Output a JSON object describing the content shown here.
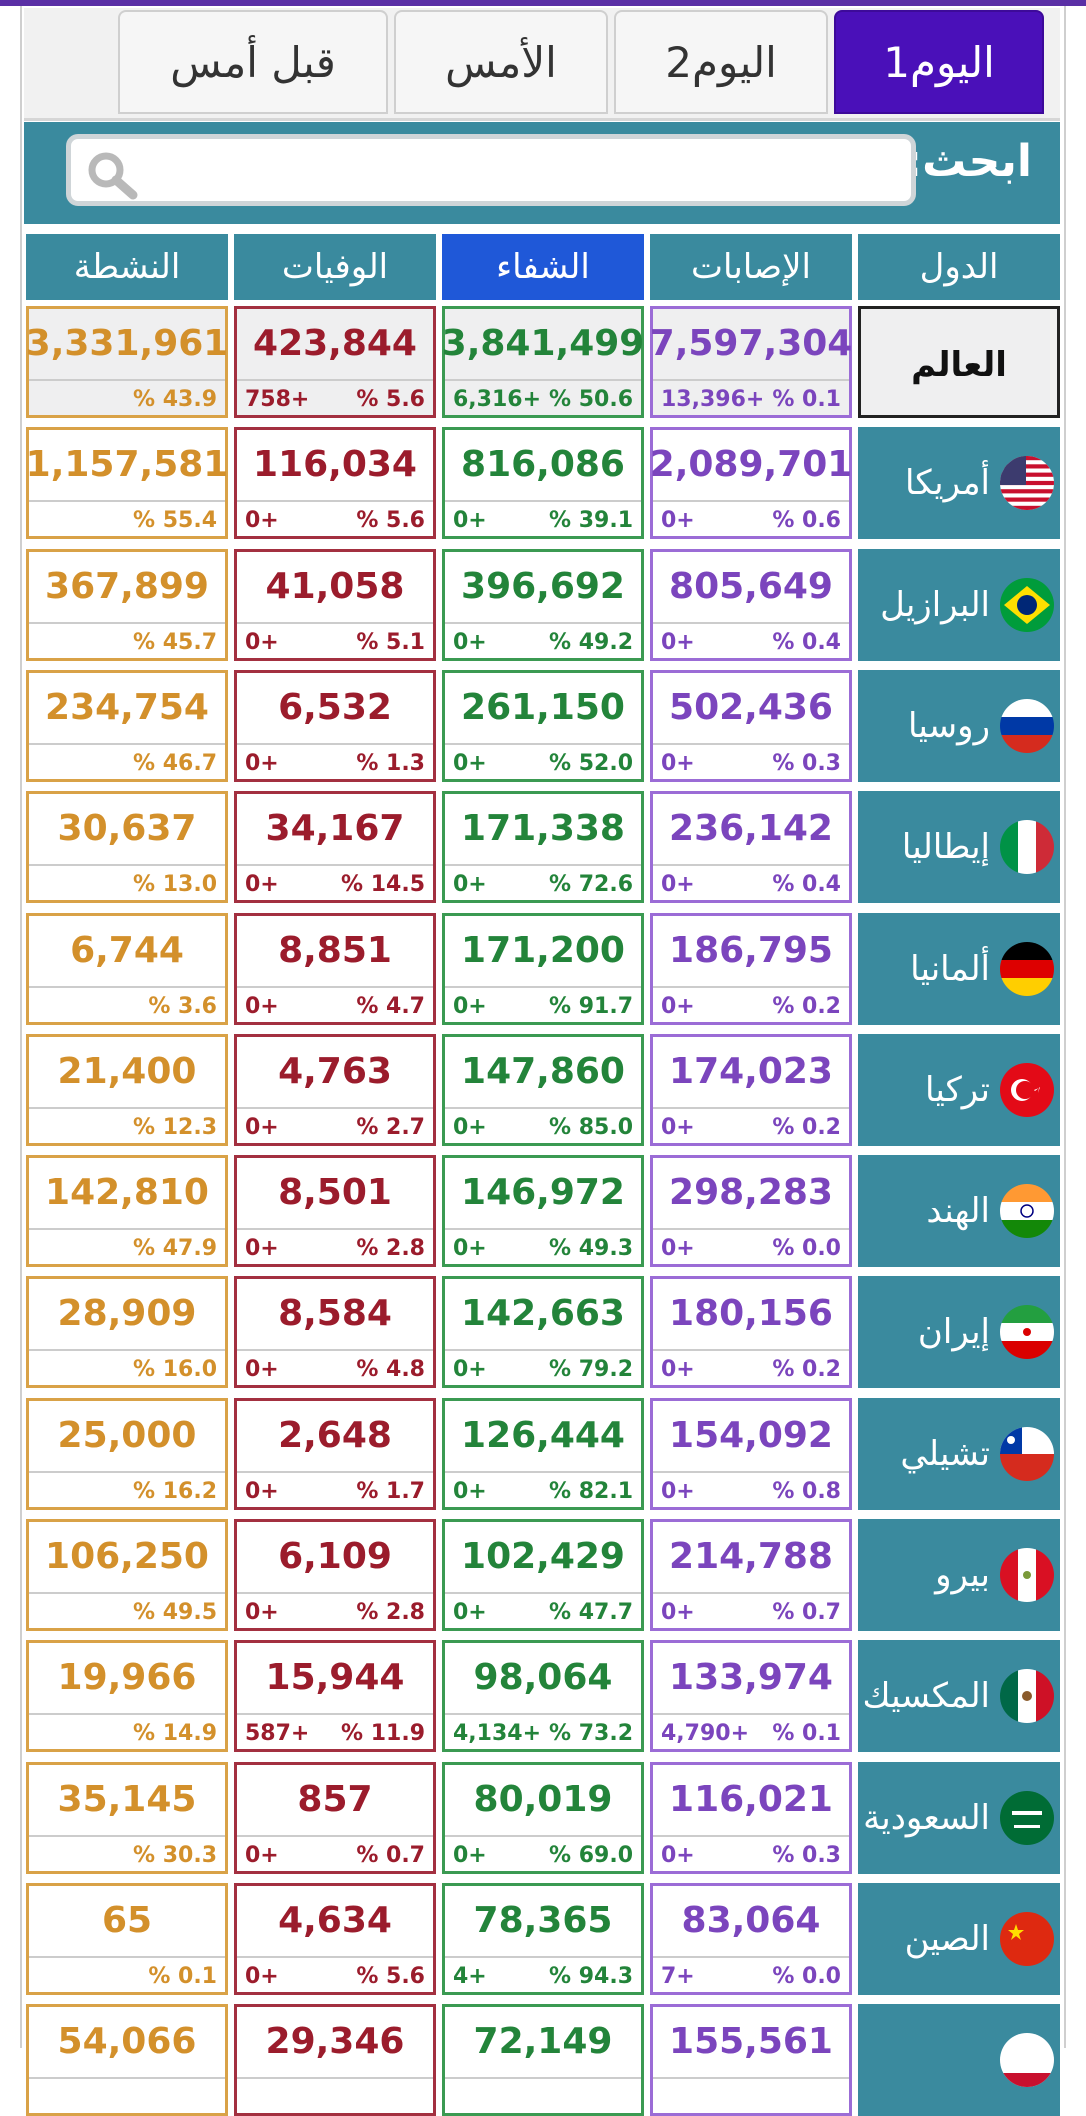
{
  "tabs": [
    {
      "label": "اليوم1",
      "active": true
    },
    {
      "label": "اليوم2",
      "active": false
    },
    {
      "label": "الأمس",
      "active": false
    },
    {
      "label": "قبل أمس",
      "active": false
    }
  ],
  "search": {
    "label": "ابحث:",
    "value": "",
    "placeholder": ""
  },
  "table": {
    "headers": {
      "country": "الدول",
      "cases": "الإصابات",
      "recovered": "الشفاء",
      "deaths": "الوفيات",
      "active": "النشطة"
    },
    "selected_header": "recovered",
    "rows": [
      {
        "country": "العالم",
        "flag": "world",
        "cases": "7,597,304",
        "cases_pct": "% 0.1",
        "cases_inc": "13,396+",
        "recovered": "3,841,499",
        "recovered_pct": "% 50.6",
        "recovered_inc": "6,316+",
        "deaths": "423,844",
        "deaths_pct": "% 5.6",
        "deaths_inc": "758+",
        "active": "3,331,961",
        "active_pct": "% 43.9"
      },
      {
        "country": "أمريكا",
        "flag": "usa-flag-icon",
        "cases": "2,089,701",
        "cases_pct": "% 0.6",
        "cases_inc": "0+",
        "recovered": "816,086",
        "recovered_pct": "% 39.1",
        "recovered_inc": "0+",
        "deaths": "116,034",
        "deaths_pct": "% 5.6",
        "deaths_inc": "0+",
        "active": "1,157,581",
        "active_pct": "% 55.4"
      },
      {
        "country": "البرازيل",
        "flag": "brazil-flag-icon",
        "cases": "805,649",
        "cases_pct": "% 0.4",
        "cases_inc": "0+",
        "recovered": "396,692",
        "recovered_pct": "% 49.2",
        "recovered_inc": "0+",
        "deaths": "41,058",
        "deaths_pct": "% 5.1",
        "deaths_inc": "0+",
        "active": "367,899",
        "active_pct": "% 45.7"
      },
      {
        "country": "روسيا",
        "flag": "russia-flag-icon",
        "cases": "502,436",
        "cases_pct": "% 0.3",
        "cases_inc": "0+",
        "recovered": "261,150",
        "recovered_pct": "% 52.0",
        "recovered_inc": "0+",
        "deaths": "6,532",
        "deaths_pct": "% 1.3",
        "deaths_inc": "0+",
        "active": "234,754",
        "active_pct": "% 46.7"
      },
      {
        "country": "إيطاليا",
        "flag": "italy-flag-icon",
        "cases": "236,142",
        "cases_pct": "% 0.4",
        "cases_inc": "0+",
        "recovered": "171,338",
        "recovered_pct": "% 72.6",
        "recovered_inc": "0+",
        "deaths": "34,167",
        "deaths_pct": "% 14.5",
        "deaths_inc": "0+",
        "active": "30,637",
        "active_pct": "% 13.0"
      },
      {
        "country": "ألمانيا",
        "flag": "germany-flag-icon",
        "cases": "186,795",
        "cases_pct": "% 0.2",
        "cases_inc": "0+",
        "recovered": "171,200",
        "recovered_pct": "% 91.7",
        "recovered_inc": "0+",
        "deaths": "8,851",
        "deaths_pct": "% 4.7",
        "deaths_inc": "0+",
        "active": "6,744",
        "active_pct": "% 3.6"
      },
      {
        "country": "تركيا",
        "flag": "turkey-flag-icon",
        "cases": "174,023",
        "cases_pct": "% 0.2",
        "cases_inc": "0+",
        "recovered": "147,860",
        "recovered_pct": "% 85.0",
        "recovered_inc": "0+",
        "deaths": "4,763",
        "deaths_pct": "% 2.7",
        "deaths_inc": "0+",
        "active": "21,400",
        "active_pct": "% 12.3"
      },
      {
        "country": "الهند",
        "flag": "india-flag-icon",
        "cases": "298,283",
        "cases_pct": "% 0.0",
        "cases_inc": "0+",
        "recovered": "146,972",
        "recovered_pct": "% 49.3",
        "recovered_inc": "0+",
        "deaths": "8,501",
        "deaths_pct": "% 2.8",
        "deaths_inc": "0+",
        "active": "142,810",
        "active_pct": "% 47.9"
      },
      {
        "country": "إيران",
        "flag": "iran-flag-icon",
        "cases": "180,156",
        "cases_pct": "% 0.2",
        "cases_inc": "0+",
        "recovered": "142,663",
        "recovered_pct": "% 79.2",
        "recovered_inc": "0+",
        "deaths": "8,584",
        "deaths_pct": "% 4.8",
        "deaths_inc": "0+",
        "active": "28,909",
        "active_pct": "% 16.0"
      },
      {
        "country": "تشيلي",
        "flag": "chile-flag-icon",
        "cases": "154,092",
        "cases_pct": "% 0.8",
        "cases_inc": "0+",
        "recovered": "126,444",
        "recovered_pct": "% 82.1",
        "recovered_inc": "0+",
        "deaths": "2,648",
        "deaths_pct": "% 1.7",
        "deaths_inc": "0+",
        "active": "25,000",
        "active_pct": "% 16.2"
      },
      {
        "country": "بيرو",
        "flag": "peru-flag-icon",
        "cases": "214,788",
        "cases_pct": "% 0.7",
        "cases_inc": "0+",
        "recovered": "102,429",
        "recovered_pct": "% 47.7",
        "recovered_inc": "0+",
        "deaths": "6,109",
        "deaths_pct": "% 2.8",
        "deaths_inc": "0+",
        "active": "106,250",
        "active_pct": "% 49.5"
      },
      {
        "country": "المكسيك",
        "flag": "mexico-flag-icon",
        "cases": "133,974",
        "cases_pct": "% 0.1",
        "cases_inc": "4,790+",
        "recovered": "98,064",
        "recovered_pct": "% 73.2",
        "recovered_inc": "4,134+",
        "deaths": "15,944",
        "deaths_pct": "% 11.9",
        "deaths_inc": "587+",
        "active": "19,966",
        "active_pct": "% 14.9"
      },
      {
        "country": "السعودية",
        "flag": "saudi-flag-icon",
        "cases": "116,021",
        "cases_pct": "% 0.3",
        "cases_inc": "0+",
        "recovered": "80,019",
        "recovered_pct": "% 69.0",
        "recovered_inc": "0+",
        "deaths": "857",
        "deaths_pct": "% 0.7",
        "deaths_inc": "0+",
        "active": "35,145",
        "active_pct": "% 30.3"
      },
      {
        "country": "الصين",
        "flag": "china-flag-icon",
        "cases": "83,064",
        "cases_pct": "% 0.0",
        "cases_inc": "7+",
        "recovered": "78,365",
        "recovered_pct": "% 94.3",
        "recovered_inc": "4+",
        "deaths": "4,634",
        "deaths_pct": "% 5.6",
        "deaths_inc": "0+",
        "active": "65",
        "active_pct": "% 0.1"
      },
      {
        "country": "",
        "flag": "partial-flag-icon",
        "cases": "155,561",
        "cases_pct": "",
        "cases_inc": "",
        "recovered": "72,149",
        "recovered_pct": "",
        "recovered_inc": "",
        "deaths": "29,346",
        "deaths_pct": "",
        "deaths_inc": "",
        "active": "54,066",
        "active_pct": ""
      }
    ]
  },
  "colors": {
    "tab_active": "#4a10b9",
    "header": "#3a8a9e",
    "header_selected": "#1f58d8",
    "active": "#d3902b",
    "deaths": "#9b1c2c",
    "recovered": "#23843a",
    "cases": "#7b45bd"
  }
}
